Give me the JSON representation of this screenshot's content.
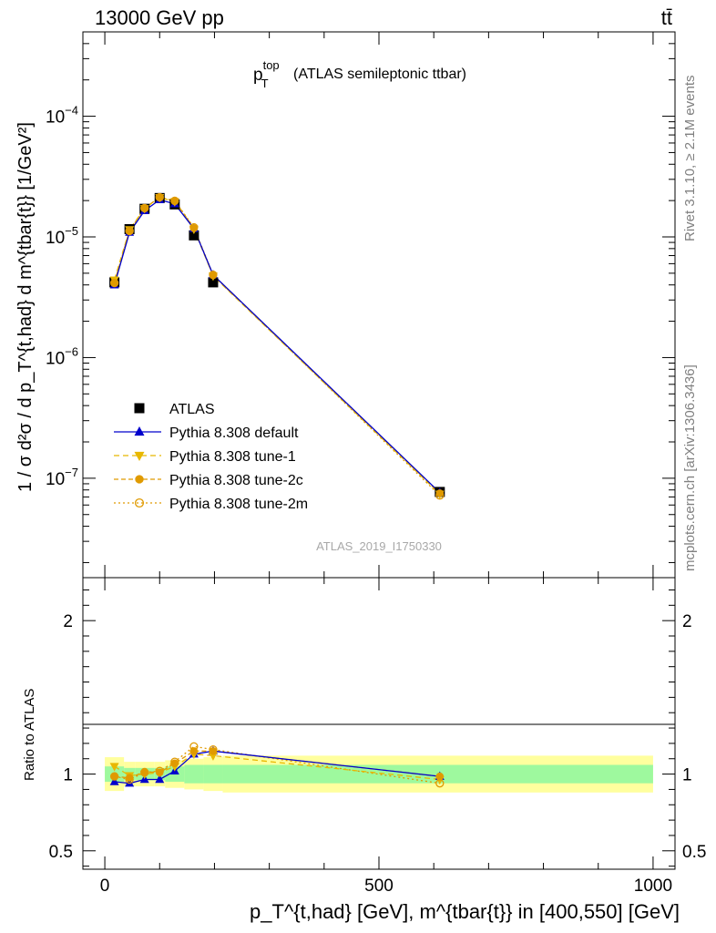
{
  "header": {
    "beam_label": "13000 GeV pp",
    "process_label": "tt̄"
  },
  "side_labels": {
    "rivet": "Rivet 3.1.10, ≥ 2.1M events",
    "mcplots": "mcplots.cern.ch [arXiv:1306.3436]"
  },
  "watermark": "ATLAS_2019_I1750330",
  "chart_data": [
    {
      "type": "line",
      "panel": "main",
      "title_main": "p",
      "title_sup": "top",
      "title_sub": "T",
      "title_rest": "(ATLAS semileptonic ttbar)",
      "ylabel": "1 / σ d²σ / d p_T^{t,had} d m^{tbar{t}} [1/GeV²]",
      "yscale": "log",
      "ylim": [
        1.5e-08,
        0.0005
      ],
      "xlim": [
        -40,
        1040
      ],
      "y_ticks": [
        {
          "value": 1e-07,
          "label": "10",
          "exp": "−7"
        },
        {
          "value": 1e-06,
          "label": "10",
          "exp": "−6"
        },
        {
          "value": 1e-05,
          "label": "10",
          "exp": "−5"
        },
        {
          "value": 0.0001,
          "label": "10",
          "exp": "−4"
        }
      ],
      "legend_position": "middle-left",
      "data": {
        "name": "ATLAS",
        "x": [
          17.5,
          45,
          72.5,
          100,
          127.5,
          162.5,
          197.5,
          611
        ],
        "y": [
          4.2e-06,
          1.16e-05,
          1.71e-05,
          2.1e-05,
          1.86e-05,
          1.03e-05,
          4.2e-06,
          7.7e-08
        ]
      },
      "series": [
        {
          "name": "Pythia 8.308 default",
          "color": "#0000cc",
          "marker": "triangle-up",
          "x": [
            17.5,
            45,
            72.5,
            100,
            127.5,
            162.5,
            197.5,
            611
          ],
          "y": [
            4e-06,
            1.09e-05,
            1.65e-05,
            2.03e-05,
            1.88e-05,
            1.17e-05,
            4.85e-06,
            7.6e-08
          ]
        },
        {
          "name": "Pythia 8.308 tune-1",
          "color": "#e8b800",
          "marker": "triangle-down",
          "x": [
            17.5,
            45,
            72.5,
            100,
            127.5,
            162.5,
            197.5,
            611
          ],
          "y": [
            4.4e-06,
            1.15e-05,
            1.72e-05,
            2.12e-05,
            1.96e-05,
            1.16e-05,
            4.75e-06,
            7.4e-08
          ]
        },
        {
          "name": "Pythia 8.308 tune-2c",
          "color": "#e09a00",
          "marker": "circle",
          "x": [
            17.5,
            45,
            72.5,
            100,
            127.5,
            162.5,
            197.5,
            611
          ],
          "y": [
            4.15e-06,
            1.13e-05,
            1.74e-05,
            2.12e-05,
            1.99e-05,
            1.18e-05,
            4.8e-06,
            7.5e-08
          ]
        },
        {
          "name": "Pythia 8.308 tune-2m",
          "color": "#e09a00",
          "marker": "circle-open",
          "x": [
            17.5,
            45,
            72.5,
            100,
            127.5,
            162.5,
            197.5,
            611
          ],
          "y": [
            4.15e-06,
            1.12e-05,
            1.73e-05,
            2.13e-05,
            1.99e-05,
            1.2e-05,
            4.85e-06,
            7.2e-08
          ]
        }
      ]
    },
    {
      "type": "line",
      "panel": "ratio",
      "ylabel": "Ratio to ATLAS",
      "xlabel": "p_T^{t,had} [GeV], m^{tbar{t}} in [400,550] [GeV]",
      "ylim": [
        0.38,
        2.28
      ],
      "xlim": [
        -40,
        1040
      ],
      "x_ticks": [
        {
          "value": 0,
          "label": "0"
        },
        {
          "value": 500,
          "label": "500"
        },
        {
          "value": 1000,
          "label": "1000"
        }
      ],
      "y_ticks": [
        {
          "value": 0.5,
          "label": "0.5"
        },
        {
          "value": 1,
          "label": "1"
        },
        {
          "value": 2,
          "label": "2"
        }
      ],
      "uncertainty_bins": [
        {
          "x0": 0,
          "x1": 35,
          "stat": 0.05,
          "total": 0.11
        },
        {
          "x0": 35,
          "x1": 55,
          "stat": 0.04,
          "total": 0.08
        },
        {
          "x0": 55,
          "x1": 90,
          "stat": 0.04,
          "total": 0.08
        },
        {
          "x0": 90,
          "x1": 110,
          "stat": 0.04,
          "total": 0.08
        },
        {
          "x0": 110,
          "x1": 145,
          "stat": 0.05,
          "total": 0.09
        },
        {
          "x0": 145,
          "x1": 180,
          "stat": 0.06,
          "total": 0.1
        },
        {
          "x0": 180,
          "x1": 215,
          "stat": 0.06,
          "total": 0.11
        },
        {
          "x0": 215,
          "x1": 1000,
          "stat": 0.06,
          "total": 0.12
        }
      ],
      "series": [
        {
          "name": "Pythia 8.308 default",
          "color": "#0000cc",
          "marker": "triangle-up",
          "x": [
            17.5,
            45,
            72.5,
            100,
            127.5,
            162.5,
            197.5,
            611
          ],
          "y": [
            0.95,
            0.94,
            0.965,
            0.965,
            1.02,
            1.13,
            1.15,
            0.985
          ]
        },
        {
          "name": "Pythia 8.308 tune-1",
          "color": "#e8b800",
          "marker": "triangle-down",
          "x": [
            17.5,
            45,
            72.5,
            100,
            127.5,
            162.5,
            197.5,
            611
          ],
          "y": [
            1.05,
            0.99,
            1.0,
            1.01,
            1.05,
            1.13,
            1.12,
            0.965
          ]
        },
        {
          "name": "Pythia 8.308 tune-2c",
          "color": "#e09a00",
          "marker": "circle",
          "x": [
            17.5,
            45,
            72.5,
            100,
            127.5,
            162.5,
            197.5,
            611
          ],
          "y": [
            0.985,
            0.975,
            1.015,
            1.01,
            1.07,
            1.15,
            1.15,
            0.985
          ]
        },
        {
          "name": "Pythia 8.308 tune-2m",
          "color": "#e09a00",
          "marker": "circle-open",
          "x": [
            17.5,
            45,
            72.5,
            100,
            127.5,
            162.5,
            197.5,
            611
          ],
          "y": [
            0.985,
            0.965,
            1.01,
            1.02,
            1.08,
            1.18,
            1.16,
            0.94
          ]
        }
      ]
    }
  ]
}
